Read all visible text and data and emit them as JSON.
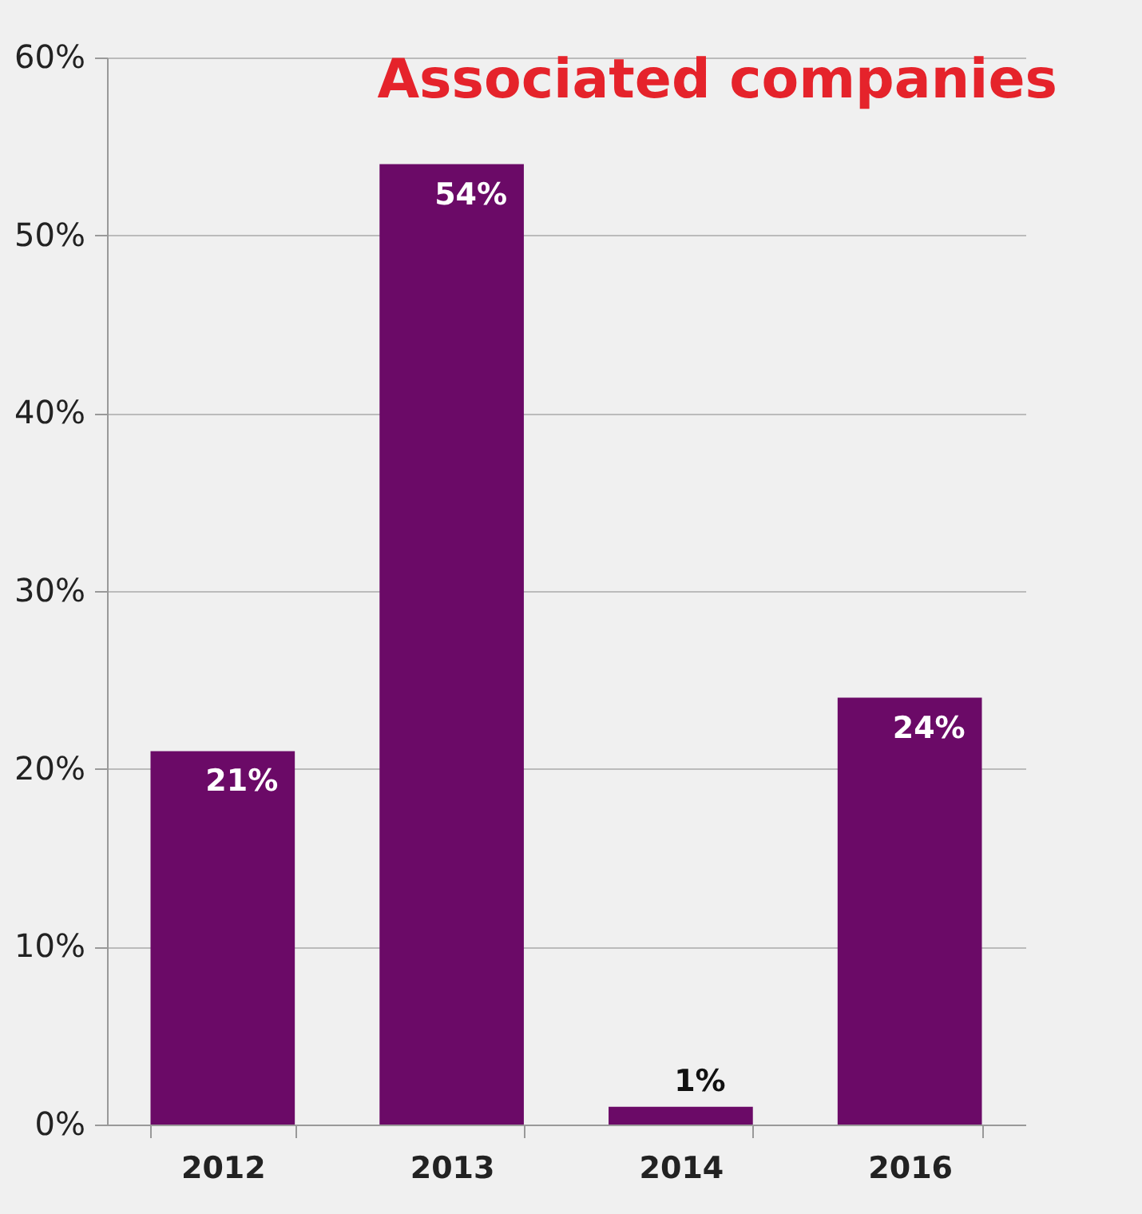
{
  "chart_data": {
    "type": "bar",
    "title": "Associated companies",
    "categories": [
      "2012",
      "2013",
      "2014",
      "2016"
    ],
    "values": [
      21,
      54,
      1,
      24
    ],
    "value_labels": [
      "21%",
      "54%",
      "1%",
      "24%"
    ],
    "color": "#6b0a67",
    "ylim": [
      0,
      60
    ],
    "yticks": [
      {
        "value": 0,
        "label": "0%"
      },
      {
        "value": 10,
        "label": "10%"
      },
      {
        "value": 20,
        "label": "20%"
      },
      {
        "value": 30,
        "label": "30%"
      },
      {
        "value": 40,
        "label": "40%"
      },
      {
        "value": 50,
        "label": "50%"
      },
      {
        "value": 60,
        "label": "60%"
      }
    ],
    "grid": "y"
  }
}
